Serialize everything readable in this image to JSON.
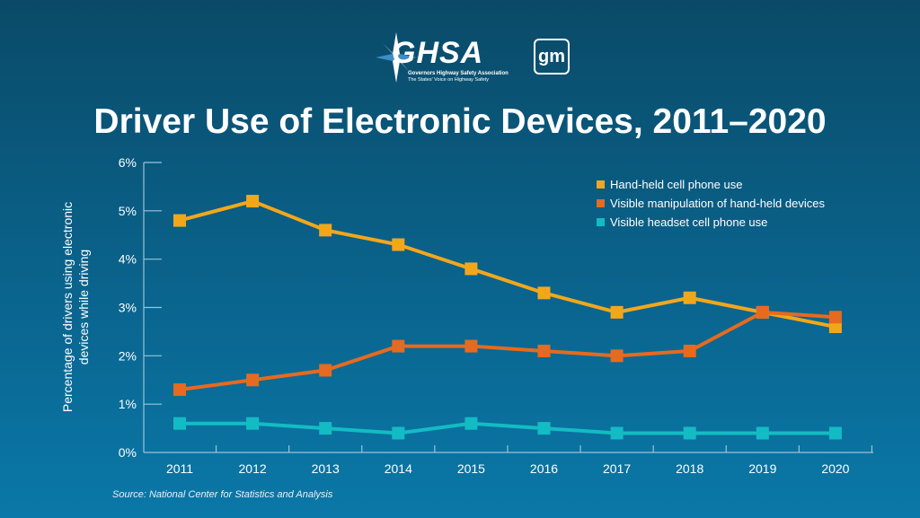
{
  "logos": {
    "ghsa": {
      "text": "GHSA",
      "line1": "Governors Highway Safety Association",
      "line2": "The States' Voice on Highway Safety"
    },
    "gm": {
      "text": "gm"
    }
  },
  "title": "Driver Use of Electronic Devices, 2011–2020",
  "source": "Source: National Center for Statistics and Analysis",
  "chart_data": {
    "type": "line",
    "title": "Driver Use of Electronic Devices, 2011–2020",
    "xlabel": "",
    "ylabel": "Percentage of drivers using electronic devices while driving",
    "categories": [
      "2011",
      "2012",
      "2013",
      "2014",
      "2015",
      "2016",
      "2017",
      "2018",
      "2019",
      "2020"
    ],
    "yticks": [
      "0%",
      "1%",
      "2%",
      "3%",
      "4%",
      "5%",
      "6%"
    ],
    "ylim": [
      0,
      6
    ],
    "grid": false,
    "legend_position": "top-right",
    "marker": "square",
    "series": [
      {
        "name": "Hand-held cell phone use",
        "color": "#f2a71b",
        "values": [
          4.8,
          5.2,
          4.6,
          4.3,
          3.8,
          3.3,
          2.9,
          3.2,
          2.9,
          2.6
        ]
      },
      {
        "name": "Visible manipulation of hand-held devices",
        "color": "#e66a1f",
        "values": [
          1.3,
          1.5,
          1.7,
          2.2,
          2.2,
          2.1,
          2.0,
          2.1,
          2.9,
          2.8
        ]
      },
      {
        "name": "Visible headset cell phone use",
        "color": "#13bcc4",
        "values": [
          0.6,
          0.6,
          0.5,
          0.4,
          0.6,
          0.5,
          0.4,
          0.4,
          0.4,
          0.4
        ]
      }
    ]
  }
}
